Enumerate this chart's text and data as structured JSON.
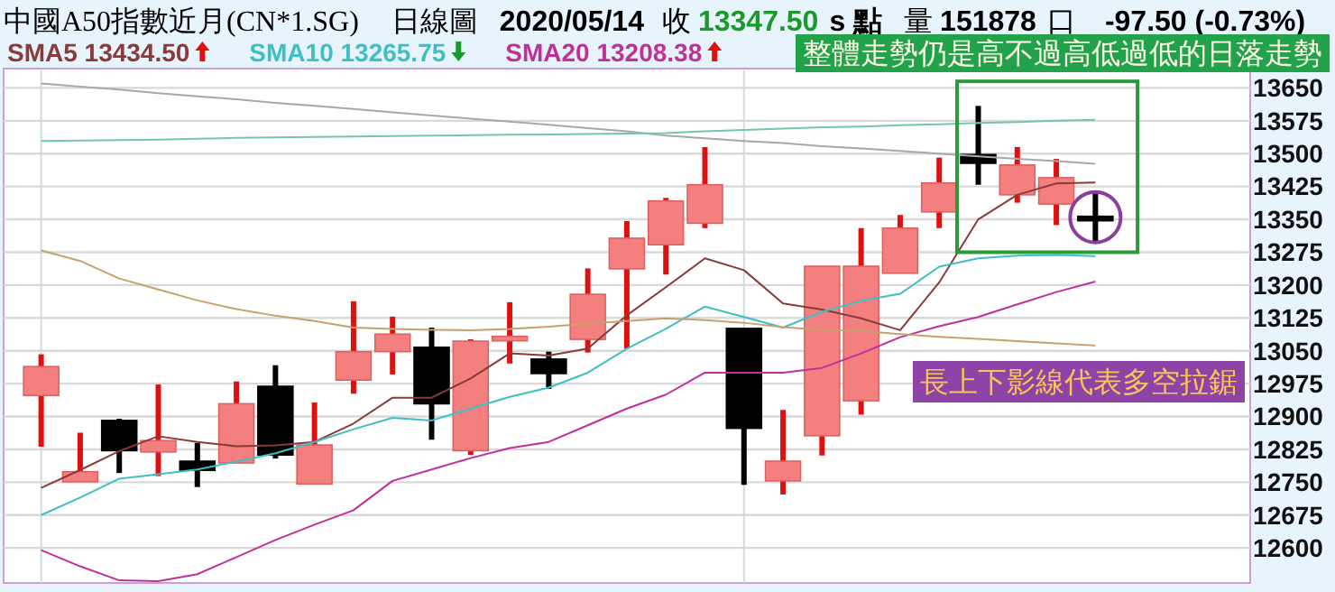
{
  "chart_data": {
    "type": "candlestick",
    "title": "中國A50指數近月(CN*1.SG)",
    "annotations": [
      "日線圖",
      "2020/05/14",
      "收",
      "13347.50",
      "s 點",
      "量",
      "151878",
      "口",
      "-97.50 (-0.73%)",
      "整體走勢仍是高不過高低過低的日落走勢",
      "長上下影線代表多空拉鋸"
    ],
    "categories": [
      null,
      null,
      null,
      null,
      null,
      null,
      null,
      null,
      null,
      null,
      null,
      null,
      null,
      null,
      null,
      null,
      null,
      null,
      null,
      null,
      null,
      null,
      null,
      null,
      null,
      null,
      null,
      null
    ],
    "ohlc": [
      [
        12948,
        13042,
        12831,
        13014
      ],
      [
        12751,
        12863,
        12751,
        12774
      ],
      [
        12891,
        12895,
        12771,
        12822
      ],
      [
        12819,
        12973,
        12764,
        12845
      ],
      [
        12798,
        12840,
        12739,
        12777
      ],
      [
        12794,
        12980,
        12794,
        12929
      ],
      [
        12969,
        13017,
        12804,
        12812
      ],
      [
        12746,
        12932,
        12746,
        12835
      ],
      [
        12983,
        13163,
        12952,
        13048
      ],
      [
        13048,
        13128,
        12996,
        13088
      ],
      [
        13058,
        13103,
        12847,
        12929
      ],
      [
        12822,
        13076,
        12812,
        13072
      ],
      [
        13073,
        13161,
        13021,
        13083
      ],
      [
        13031,
        13048,
        12963,
        12998
      ],
      [
        13076,
        13238,
        13046,
        13179
      ],
      [
        13237,
        13346,
        13055,
        13307
      ],
      [
        13292,
        13399,
        13224,
        13392
      ],
      [
        13341,
        13515,
        13330,
        13429
      ],
      [
        13101,
        13101,
        12744,
        12873
      ],
      [
        12753,
        12915,
        12722,
        12798
      ],
      [
        12856,
        13243,
        12811,
        13243
      ],
      [
        12936,
        13330,
        12904,
        13243
      ],
      [
        13227,
        13360,
        13227,
        13330
      ],
      [
        13367,
        13491,
        13330,
        13433
      ],
      [
        13498,
        13609,
        13429,
        13478
      ],
      [
        13406,
        13515,
        13388,
        13474
      ],
      [
        13385,
        13488,
        13337,
        13445
      ],
      [
        13357,
        13415,
        13296,
        13347.5
      ]
    ],
    "series": [
      {
        "type": "line",
        "name": "SMA5 13434.50",
        "color": "#8b3a3a",
        "values": [
          12737,
          12778,
          12821,
          12855,
          12842,
          12832,
          12834,
          12842,
          12884,
          12943,
          12943,
          12987,
          13044,
          13039,
          13055,
          13131,
          13195,
          13261,
          13234,
          13158,
          13144,
          13124,
          13097,
          13206,
          13350,
          13406,
          13432,
          13434
        ]
      },
      {
        "type": "line",
        "name": "SMA10 13265.75",
        "color": "#3fbfc4",
        "values": [
          12675,
          12715,
          12758,
          12768,
          12779,
          12797,
          12816,
          12842,
          12871,
          12897,
          12891,
          12918,
          12945,
          12966,
          13000,
          13055,
          13100,
          13151,
          13127,
          13103,
          13139,
          13164,
          13180,
          13242,
          13261,
          13267,
          13269,
          13266
        ]
      },
      {
        "type": "line",
        "name": "SMA20 13208.38",
        "color": "#c0309a",
        "values": [
          12595,
          12558,
          12526,
          12524,
          12540,
          12579,
          12618,
          12653,
          12686,
          12753,
          12779,
          12805,
          12828,
          12842,
          12880,
          12918,
          12950,
          13000,
          13000,
          13000,
          13011,
          13044,
          13081,
          13106,
          13127,
          13156,
          13184,
          13208
        ]
      },
      {
        "type": "line",
        "color": "#c8a070",
        "values": [
          13279,
          13255,
          13215,
          13190,
          13165,
          13145,
          13130,
          13118,
          13103,
          13100,
          13098,
          13097,
          13100,
          13105,
          13112,
          13118,
          13124,
          13120,
          13114,
          13104,
          13098,
          13095,
          13088,
          13082,
          13077,
          13072,
          13067,
          13062
        ]
      },
      {
        "type": "line",
        "color": "#a8a8a8",
        "values": [
          13660,
          13653,
          13646,
          13638,
          13631,
          13624,
          13616,
          13609,
          13602,
          13594,
          13587,
          13580,
          13573,
          13566,
          13558,
          13551,
          13541,
          13535,
          13529,
          13524,
          13517,
          13512,
          13506,
          13500,
          13494,
          13488,
          13483,
          13477
        ]
      },
      {
        "type": "line",
        "color": "#70c8a8",
        "values": [
          13529,
          13530,
          13531,
          13532,
          13534,
          13536,
          13537,
          13538,
          13539,
          13540,
          13541,
          13542,
          13543,
          13544,
          13545,
          13546,
          13547,
          13551,
          13554,
          13557,
          13560,
          13562,
          13565,
          13567,
          13570,
          13572,
          13575,
          13577
        ]
      }
    ],
    "ylim": [
      12520,
      13690
    ],
    "yticks": [
      12600,
      12675,
      12750,
      12825,
      12900,
      12975,
      13050,
      13125,
      13200,
      13275,
      13350,
      13425,
      13500,
      13575,
      13650
    ],
    "grid": "y",
    "tick_labels": "y",
    "legend": "top left"
  }
}
